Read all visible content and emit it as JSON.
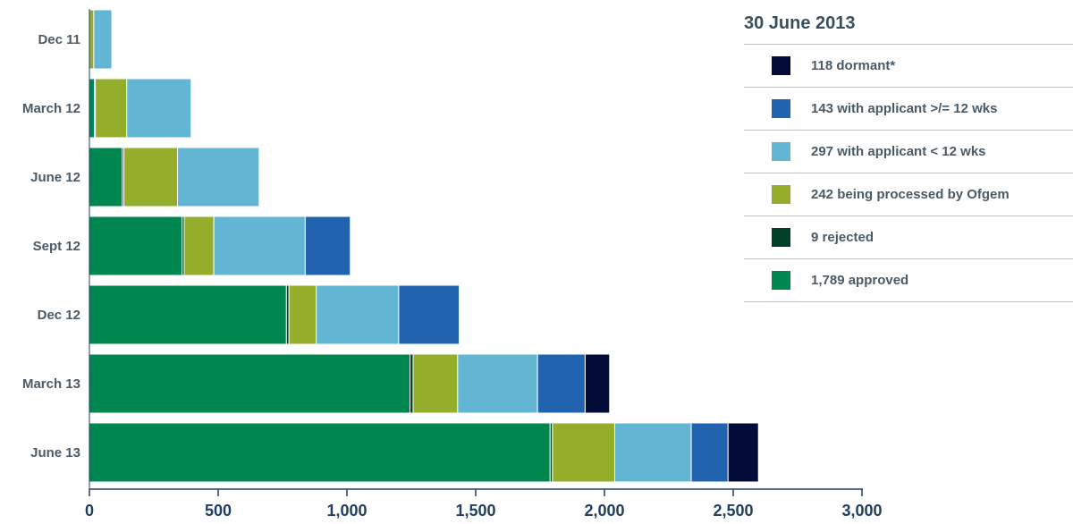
{
  "chart_data": {
    "type": "bar",
    "orientation": "horizontal",
    "stacked": true,
    "title": "30 June 2013",
    "categories": [
      "Dec 11",
      "March 12",
      "June 12",
      "Sept 12",
      "Dec 12",
      "March 13",
      "June 13"
    ],
    "series": [
      {
        "name": "1,789 approved",
        "color": "#00864f",
        "values": [
          0,
          20,
          128,
          360,
          765,
          1245,
          1789
        ]
      },
      {
        "name": "9 rejected",
        "color": "#004028",
        "values": [
          0,
          3,
          6,
          8,
          10,
          12,
          9
        ]
      },
      {
        "name": "242 being processed by Ofgem",
        "color": "#94ae2b",
        "values": [
          17,
          122,
          208,
          115,
          106,
          173,
          242
        ]
      },
      {
        "name": "297 with applicant < 12 wks",
        "color": "#62b5d3",
        "values": [
          70,
          250,
          317,
          355,
          320,
          310,
          297
        ]
      },
      {
        "name": "143 with applicant >/= 12 wks",
        "color": "#2263b0",
        "values": [
          0,
          0,
          0,
          175,
          235,
          185,
          143
        ]
      },
      {
        "name": "118 dormant*",
        "color": "#030c38",
        "values": [
          0,
          0,
          0,
          0,
          0,
          95,
          118
        ]
      }
    ],
    "legend_order": [
      5,
      4,
      3,
      2,
      1,
      0
    ],
    "xlim": [
      0,
      3000
    ],
    "xticks": [
      0,
      500,
      1000,
      1500,
      2000,
      2500,
      3000
    ],
    "xtick_labels": [
      "0",
      "500",
      "1,000",
      "1,500",
      "2,000",
      "2,500",
      "3,000"
    ],
    "legend_position": "top-right",
    "grid": false
  }
}
